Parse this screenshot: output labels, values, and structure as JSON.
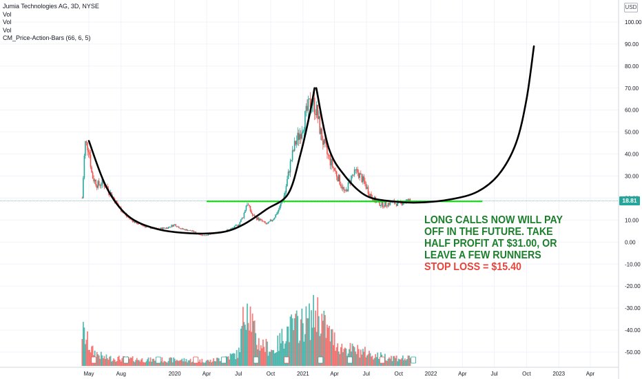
{
  "legend": {
    "symbol_line": "Jumia Technologies AG, 3D, NYSE",
    "indicators": [
      "Vol",
      "Vol",
      "Vol",
      "CM_Price-Action-Bars (66, 6, 5)"
    ]
  },
  "currency": "USD",
  "last_price": "18.81",
  "annotation": {
    "lines": [
      "LONG CALLS NOW WILL PAY",
      "OFF IN THE FUTURE.    TAKE",
      "HALF PROFIT AT $31.00,  OR",
      "LEAVE A FEW RUNNERS"
    ],
    "stop_line": "STOP LOSS = $15.40"
  },
  "colors": {
    "up": "#26a69a",
    "down": "#ef5350",
    "support_line": "#00e600",
    "curve": "#000000",
    "annotation_green": "#1b7f2b",
    "annotation_red": "#e8443a"
  },
  "chart_data": {
    "type": "candlestick",
    "y_axis": {
      "ticks": [
        100,
        90,
        80,
        70,
        60,
        50,
        40,
        30,
        20,
        10,
        0,
        -10,
        -20,
        -30,
        -40,
        -50
      ],
      "tick_labels": [
        "100.00",
        "90.00",
        "80.00",
        "70.00",
        "60.00",
        "50.00",
        "40.00",
        "30.00",
        "20.00",
        "10.00",
        "0.00",
        "-10.00",
        "-20.00",
        "-30.00",
        "-40.00",
        "-50.00"
      ],
      "range": [
        -59,
        106
      ]
    },
    "x_axis": {
      "labels": [
        {
          "label": "May",
          "date": "2019-05-01"
        },
        {
          "label": "Aug",
          "date": "2019-08-01"
        },
        {
          "label": "2020",
          "date": "2020-01-01"
        },
        {
          "label": "Apr",
          "date": "2020-04-01"
        },
        {
          "label": "Jul",
          "date": "2020-07-01"
        },
        {
          "label": "Oct",
          "date": "2020-10-01"
        },
        {
          "label": "2021",
          "date": "2021-01-01"
        },
        {
          "label": "Apr",
          "date": "2021-04-01"
        },
        {
          "label": "Jul",
          "date": "2021-07-01"
        },
        {
          "label": "Oct",
          "date": "2021-10-01"
        },
        {
          "label": "2022",
          "date": "2022-01-01"
        },
        {
          "label": "Apr",
          "date": "2022-04-01"
        },
        {
          "label": "Jul",
          "date": "2022-07-01"
        },
        {
          "label": "Oct",
          "date": "2022-10-01"
        },
        {
          "label": "2023",
          "date": "2023-01-01"
        },
        {
          "label": "Apr",
          "date": "2023-04-01"
        }
      ],
      "range": [
        "2019-03-20",
        "2023-06-20"
      ]
    },
    "price_path": [
      [
        "2019-04-12",
        20
      ],
      [
        "2019-04-20",
        45
      ],
      [
        "2019-05-01",
        43
      ],
      [
        "2019-05-10",
        30
      ],
      [
        "2019-05-25",
        26
      ],
      [
        "2019-06-10",
        27
      ],
      [
        "2019-06-25",
        24
      ],
      [
        "2019-07-10",
        20
      ],
      [
        "2019-07-25",
        16
      ],
      [
        "2019-08-15",
        12
      ],
      [
        "2019-09-10",
        9
      ],
      [
        "2019-10-10",
        7
      ],
      [
        "2019-11-10",
        6
      ],
      [
        "2019-12-10",
        6.5
      ],
      [
        "2020-01-01",
        8
      ],
      [
        "2020-01-20",
        6
      ],
      [
        "2020-02-20",
        5
      ],
      [
        "2020-03-20",
        3
      ],
      [
        "2020-04-10",
        3.5
      ],
      [
        "2020-05-10",
        4.5
      ],
      [
        "2020-06-10",
        6
      ],
      [
        "2020-07-01",
        8
      ],
      [
        "2020-07-15",
        12
      ],
      [
        "2020-07-25",
        18
      ],
      [
        "2020-08-10",
        12
      ],
      [
        "2020-09-01",
        10
      ],
      [
        "2020-09-20",
        8
      ],
      [
        "2020-10-10",
        11
      ],
      [
        "2020-10-25",
        15
      ],
      [
        "2020-11-10",
        22
      ],
      [
        "2020-11-25",
        35
      ],
      [
        "2020-12-10",
        45
      ],
      [
        "2020-12-25",
        50
      ],
      [
        "2021-01-10",
        58
      ],
      [
        "2021-01-25",
        65
      ],
      [
        "2021-02-08",
        60
      ],
      [
        "2021-02-20",
        50
      ],
      [
        "2021-03-05",
        42
      ],
      [
        "2021-03-25",
        35
      ],
      [
        "2021-04-15",
        28
      ],
      [
        "2021-05-01",
        22
      ],
      [
        "2021-05-20",
        30
      ],
      [
        "2021-06-05",
        32
      ],
      [
        "2021-06-25",
        27
      ],
      [
        "2021-07-10",
        22
      ],
      [
        "2021-07-30",
        18
      ],
      [
        "2021-08-20",
        17
      ],
      [
        "2021-09-10",
        18
      ],
      [
        "2021-10-01",
        17.5
      ],
      [
        "2021-10-20",
        18.5
      ],
      [
        "2021-11-05",
        18.81
      ]
    ],
    "volume_path": [
      [
        "2019-04-12",
        0.35
      ],
      [
        "2019-05-10",
        0.15
      ],
      [
        "2019-06-15",
        0.08
      ],
      [
        "2019-08-15",
        0.07
      ],
      [
        "2019-10-15",
        0.06
      ],
      [
        "2020-01-15",
        0.06
      ],
      [
        "2020-04-15",
        0.05
      ],
      [
        "2020-07-01",
        0.12
      ],
      [
        "2020-07-25",
        0.7
      ],
      [
        "2020-08-20",
        0.25
      ],
      [
        "2020-10-10",
        0.15
      ],
      [
        "2020-11-15",
        0.35
      ],
      [
        "2020-12-15",
        0.4
      ],
      [
        "2021-01-20",
        0.45
      ],
      [
        "2021-02-10",
        0.55
      ],
      [
        "2021-03-10",
        0.35
      ],
      [
        "2021-04-20",
        0.18
      ],
      [
        "2021-06-10",
        0.15
      ],
      [
        "2021-08-01",
        0.1
      ],
      [
        "2021-10-01",
        0.08
      ],
      [
        "2021-11-05",
        0.07
      ]
    ],
    "support_level": {
      "y": 18.5,
      "start": "2020-04-01",
      "end": "2022-05-28"
    },
    "drawn_curves": [
      {
        "name": "first-cup",
        "points": [
          [
            "2019-05-01",
            46
          ],
          [
            "2019-06-20",
            25
          ],
          [
            "2019-08-20",
            12
          ],
          [
            "2019-11-10",
            6
          ],
          [
            "2020-02-15",
            4
          ],
          [
            "2020-05-15",
            4.5
          ],
          [
            "2020-07-15",
            8
          ],
          [
            "2020-09-20",
            15
          ],
          [
            "2020-11-20",
            22
          ],
          [
            "2020-12-25",
            40
          ],
          [
            "2021-01-20",
            58
          ],
          [
            "2021-02-03",
            70
          ]
        ]
      },
      {
        "name": "second-cup",
        "points": [
          [
            "2021-02-08",
            70
          ],
          [
            "2021-03-15",
            43
          ],
          [
            "2021-05-01",
            30
          ],
          [
            "2021-07-01",
            21
          ],
          [
            "2021-09-15",
            18.5
          ],
          [
            "2021-12-01",
            18
          ],
          [
            "2022-03-01",
            19.5
          ],
          [
            "2022-05-15",
            23
          ],
          [
            "2022-07-15",
            31
          ],
          [
            "2022-09-01",
            45
          ],
          [
            "2022-10-01",
            65
          ],
          [
            "2022-10-22",
            89
          ]
        ]
      }
    ],
    "legend_placement": "top-left",
    "grid": true
  }
}
